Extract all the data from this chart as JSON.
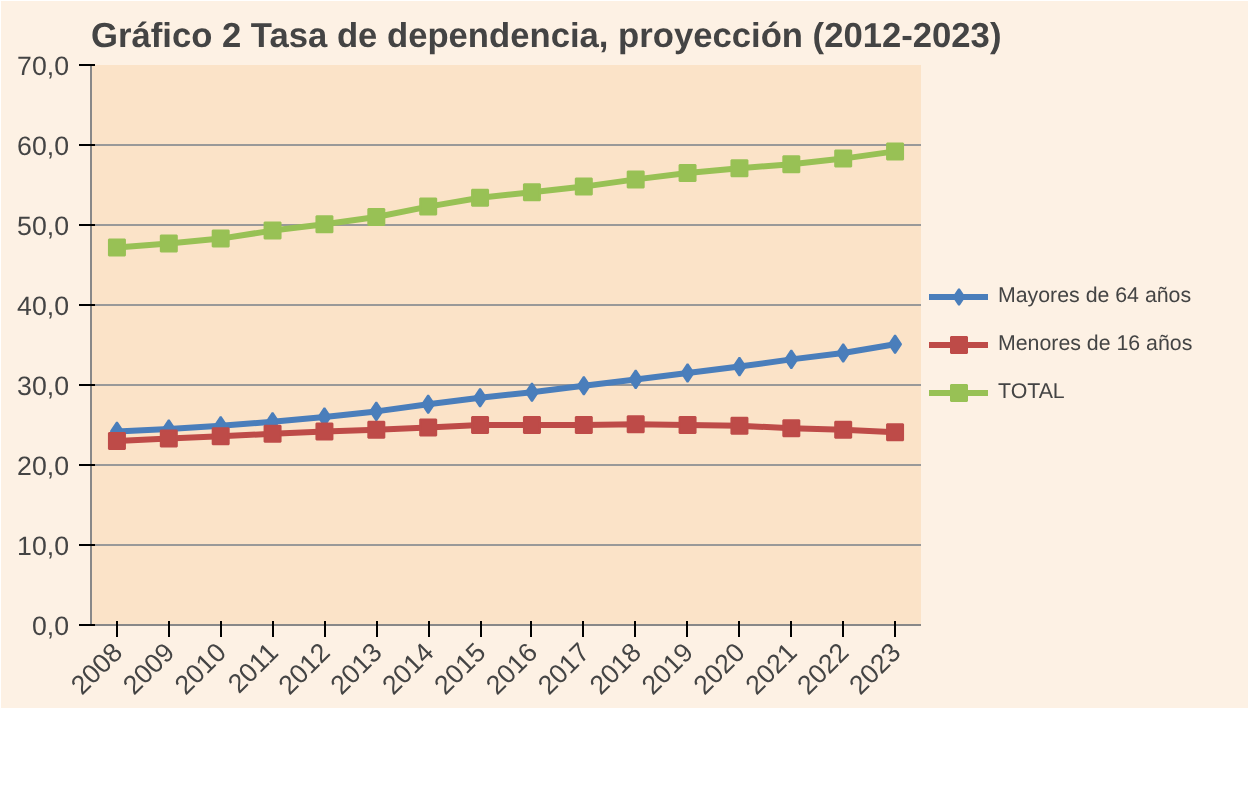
{
  "chart_data": {
    "type": "line",
    "title": "Gráfico 2 Tasa de dependencia, proyección (2012-2023)",
    "categories": [
      "2008",
      "2009",
      "2010",
      "2011",
      "2012",
      "2013",
      "2014",
      "2015",
      "2016",
      "2017",
      "2018",
      "2019",
      "2020",
      "2021",
      "2022",
      "2023"
    ],
    "series": [
      {
        "name": "Mayores de 64 años",
        "color": "#4a7ebb",
        "marker": "diamond",
        "values": [
          24.2,
          24.5,
          24.9,
          25.4,
          26.0,
          26.7,
          27.6,
          28.4,
          29.1,
          29.9,
          30.7,
          31.5,
          32.3,
          33.2,
          34.0,
          35.1
        ]
      },
      {
        "name": "Menores de 16 años",
        "color": "#be4b48",
        "marker": "square",
        "values": [
          23.0,
          23.3,
          23.6,
          23.9,
          24.2,
          24.4,
          24.7,
          25.0,
          25.0,
          25.0,
          25.1,
          25.0,
          24.9,
          24.6,
          24.4,
          24.1
        ]
      },
      {
        "name": "TOTAL",
        "color": "#98c155",
        "marker": "square",
        "values": [
          47.2,
          47.7,
          48.3,
          49.3,
          50.1,
          51.0,
          52.3,
          53.4,
          54.1,
          54.8,
          55.7,
          56.5,
          57.1,
          57.6,
          58.3,
          59.2
        ]
      }
    ],
    "ylim": [
      0,
      70
    ],
    "yticks": [
      {
        "value": 0,
        "label": "0,0"
      },
      {
        "value": 10,
        "label": "10,0"
      },
      {
        "value": 20,
        "label": "20,0"
      },
      {
        "value": 30,
        "label": "30,0"
      },
      {
        "value": 40,
        "label": "40,0"
      },
      {
        "value": 50,
        "label": "50,0"
      },
      {
        "value": 60,
        "label": "60,0"
      },
      {
        "value": 70,
        "label": "70,0"
      }
    ],
    "grid": "y",
    "legend": "right"
  }
}
